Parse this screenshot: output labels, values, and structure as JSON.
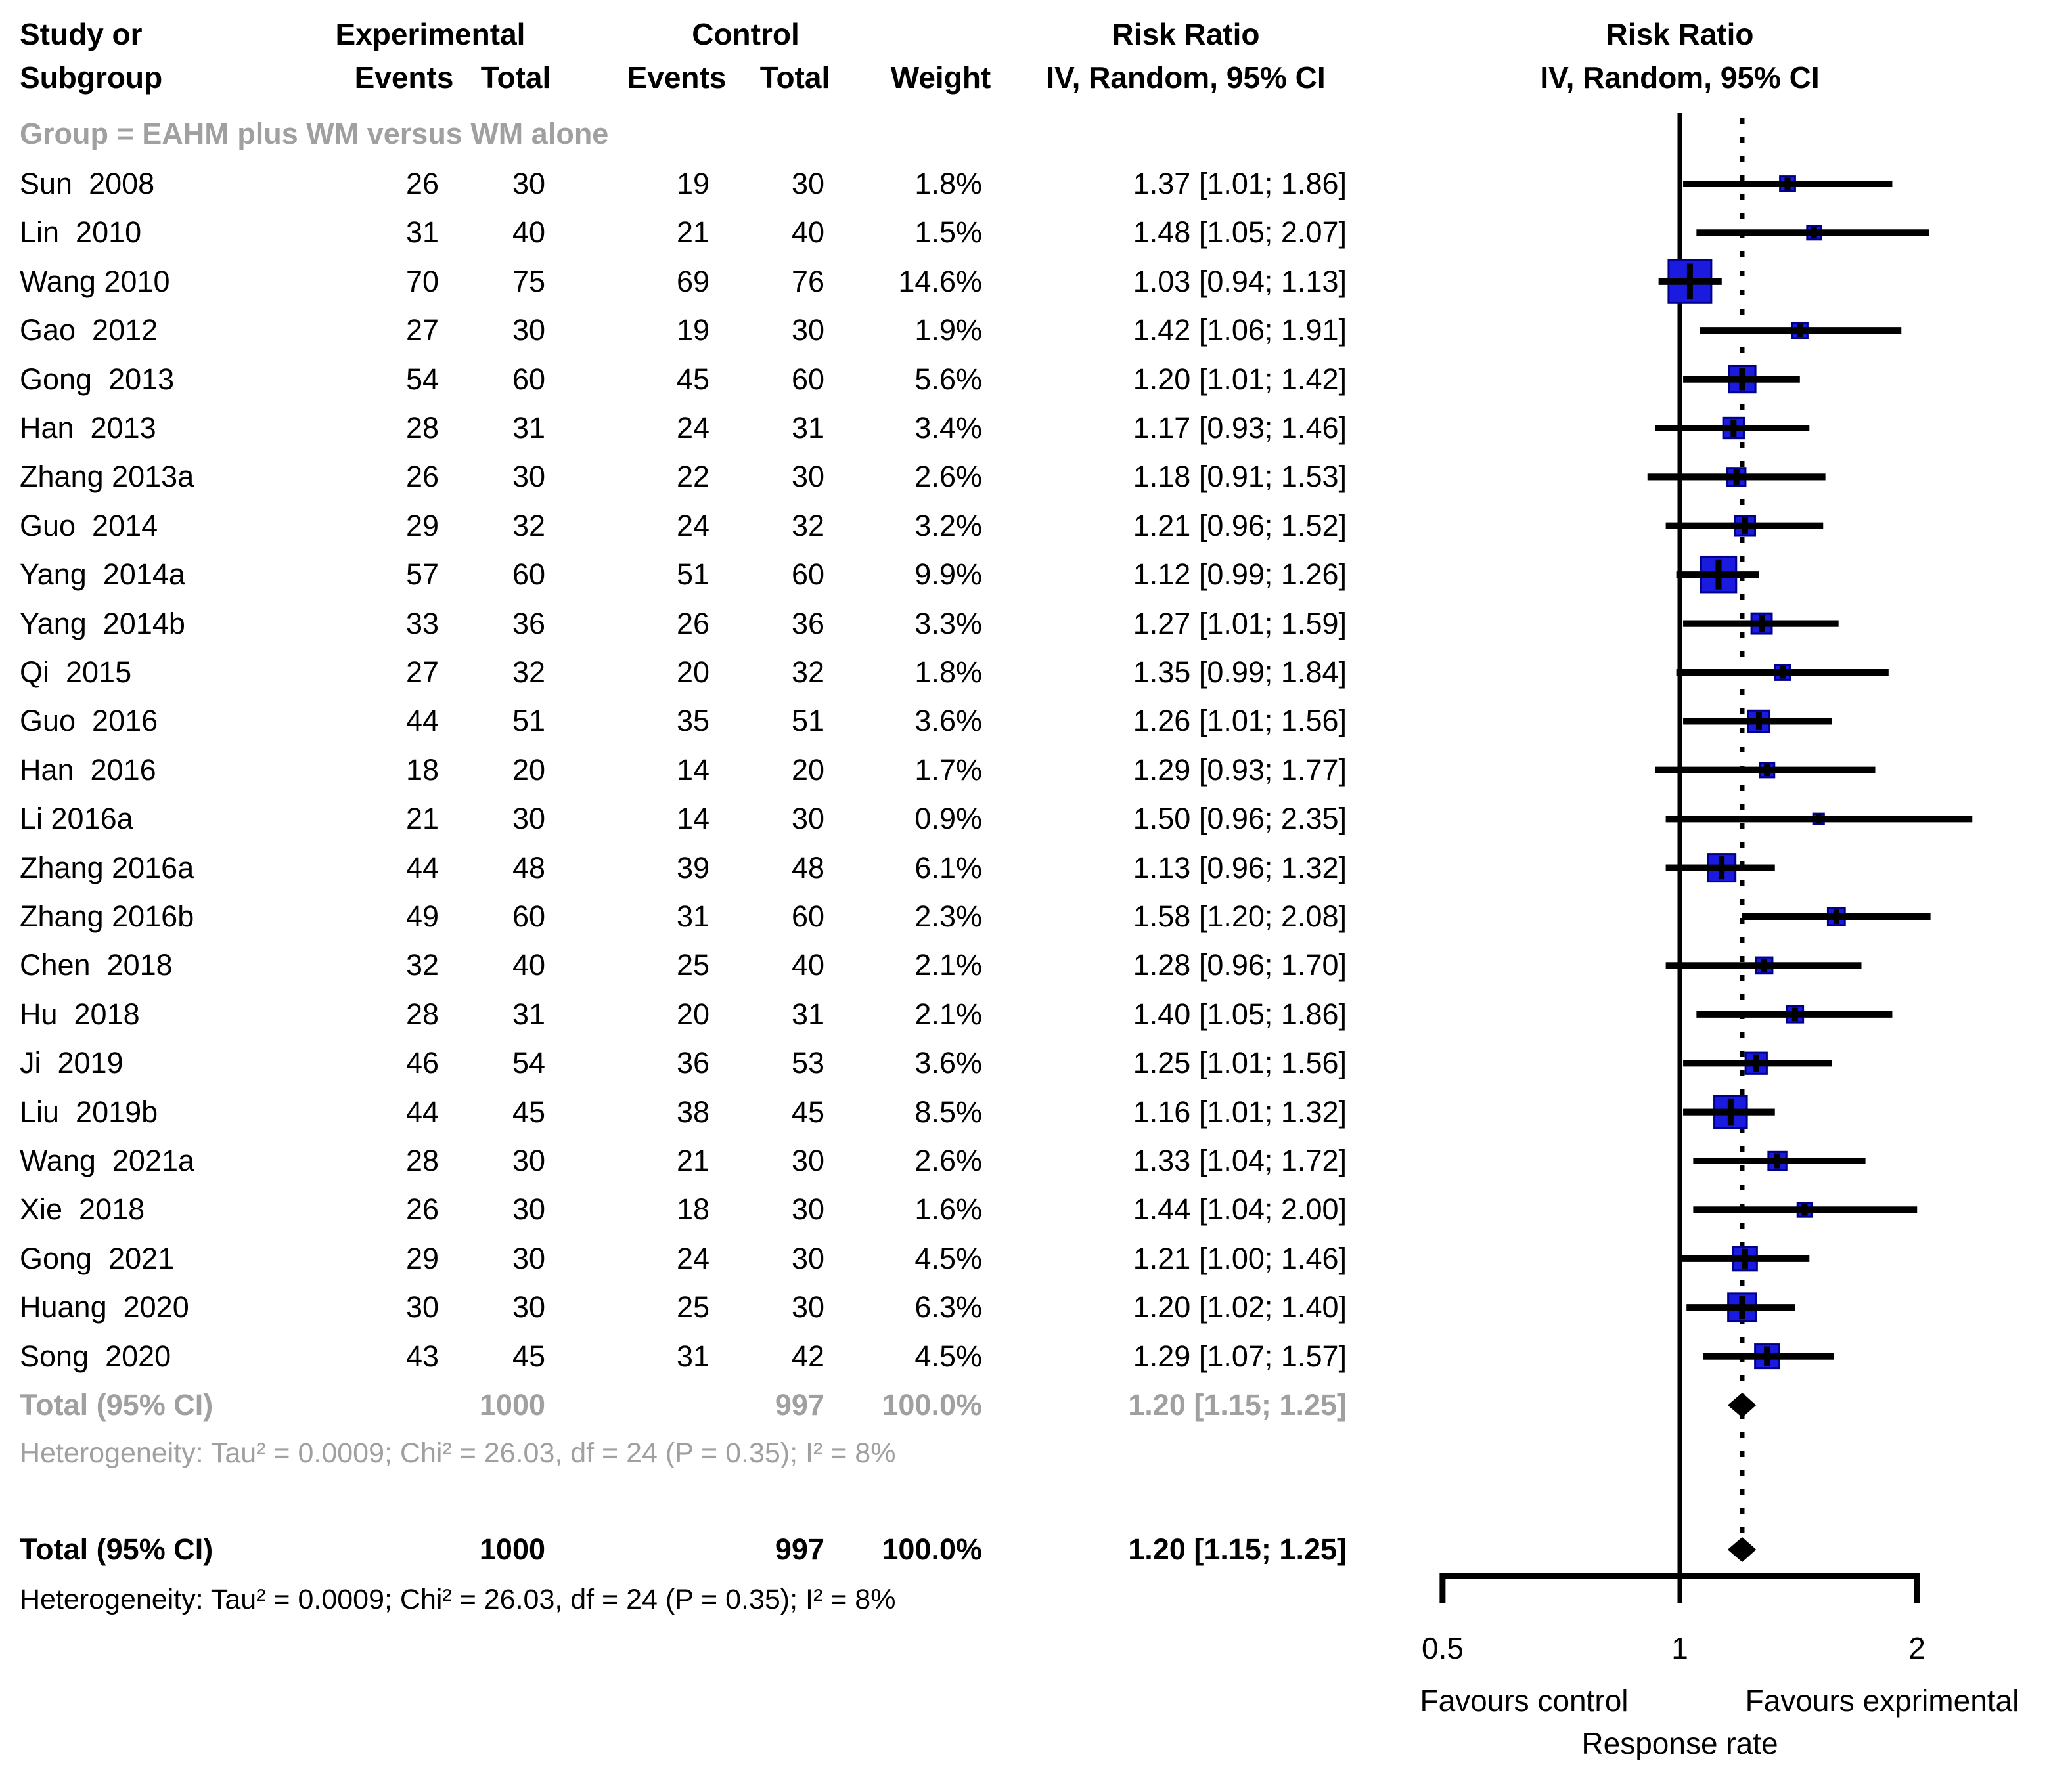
{
  "header": {
    "study_line1": "Study or",
    "study_line2": "Subgroup",
    "experimental": "Experimental",
    "control": "Control",
    "events": "Events",
    "total": "Total",
    "weight": "Weight",
    "risk_ratio": "Risk Ratio",
    "method_ci": "IV, Random, 95% CI"
  },
  "subgroup_label": "Group = EAHM plus WM versus WM alone",
  "labels": {
    "total_label": "Total (95% CI)"
  },
  "axis": {
    "ticks": [
      "0.5",
      "1",
      "2"
    ],
    "favours_left": "Favours control",
    "favours_right": "Favours exprimental",
    "xlabel": "Response rate"
  },
  "colors": {
    "square": "#1b1be0",
    "square_border": "#00008b",
    "ci_line": "#000000",
    "gray_text": "#a0a0a0",
    "diamond": "#000000"
  },
  "chart_data": {
    "type": "forest",
    "effect_measure": "Risk Ratio",
    "model": "IV, Random, 95% CI",
    "x_scale": "log",
    "x_ticks": [
      0.5,
      1,
      2
    ],
    "null_line": 1,
    "pooled_dotted_line": 1.2,
    "studies": [
      {
        "name": "Sun  2008",
        "exp_events": 26,
        "exp_total": 30,
        "ctrl_events": 19,
        "ctrl_total": 30,
        "weight": 1.8,
        "est": 1.37,
        "lo": 1.01,
        "hi": 1.86
      },
      {
        "name": "Lin  2010",
        "exp_events": 31,
        "exp_total": 40,
        "ctrl_events": 21,
        "ctrl_total": 40,
        "weight": 1.5,
        "est": 1.48,
        "lo": 1.05,
        "hi": 2.07
      },
      {
        "name": "Wang 2010",
        "exp_events": 70,
        "exp_total": 75,
        "ctrl_events": 69,
        "ctrl_total": 76,
        "weight": 14.6,
        "est": 1.03,
        "lo": 0.94,
        "hi": 1.13
      },
      {
        "name": "Gao  2012",
        "exp_events": 27,
        "exp_total": 30,
        "ctrl_events": 19,
        "ctrl_total": 30,
        "weight": 1.9,
        "est": 1.42,
        "lo": 1.06,
        "hi": 1.91
      },
      {
        "name": "Gong  2013",
        "exp_events": 54,
        "exp_total": 60,
        "ctrl_events": 45,
        "ctrl_total": 60,
        "weight": 5.6,
        "est": 1.2,
        "lo": 1.01,
        "hi": 1.42
      },
      {
        "name": "Han  2013",
        "exp_events": 28,
        "exp_total": 31,
        "ctrl_events": 24,
        "ctrl_total": 31,
        "weight": 3.4,
        "est": 1.17,
        "lo": 0.93,
        "hi": 1.46
      },
      {
        "name": "Zhang 2013a",
        "exp_events": 26,
        "exp_total": 30,
        "ctrl_events": 22,
        "ctrl_total": 30,
        "weight": 2.6,
        "est": 1.18,
        "lo": 0.91,
        "hi": 1.53
      },
      {
        "name": "Guo  2014",
        "exp_events": 29,
        "exp_total": 32,
        "ctrl_events": 24,
        "ctrl_total": 32,
        "weight": 3.2,
        "est": 1.21,
        "lo": 0.96,
        "hi": 1.52
      },
      {
        "name": "Yang  2014a",
        "exp_events": 57,
        "exp_total": 60,
        "ctrl_events": 51,
        "ctrl_total": 60,
        "weight": 9.9,
        "est": 1.12,
        "lo": 0.99,
        "hi": 1.26
      },
      {
        "name": "Yang  2014b",
        "exp_events": 33,
        "exp_total": 36,
        "ctrl_events": 26,
        "ctrl_total": 36,
        "weight": 3.3,
        "est": 1.27,
        "lo": 1.01,
        "hi": 1.59
      },
      {
        "name": "Qi  2015",
        "exp_events": 27,
        "exp_total": 32,
        "ctrl_events": 20,
        "ctrl_total": 32,
        "weight": 1.8,
        "est": 1.35,
        "lo": 0.99,
        "hi": 1.84
      },
      {
        "name": "Guo  2016",
        "exp_events": 44,
        "exp_total": 51,
        "ctrl_events": 35,
        "ctrl_total": 51,
        "weight": 3.6,
        "est": 1.26,
        "lo": 1.01,
        "hi": 1.56
      },
      {
        "name": "Han  2016",
        "exp_events": 18,
        "exp_total": 20,
        "ctrl_events": 14,
        "ctrl_total": 20,
        "weight": 1.7,
        "est": 1.29,
        "lo": 0.93,
        "hi": 1.77
      },
      {
        "name": "Li 2016a",
        "exp_events": 21,
        "exp_total": 30,
        "ctrl_events": 14,
        "ctrl_total": 30,
        "weight": 0.9,
        "est": 1.5,
        "lo": 0.96,
        "hi": 2.35
      },
      {
        "name": "Zhang 2016a",
        "exp_events": 44,
        "exp_total": 48,
        "ctrl_events": 39,
        "ctrl_total": 48,
        "weight": 6.1,
        "est": 1.13,
        "lo": 0.96,
        "hi": 1.32
      },
      {
        "name": "Zhang 2016b",
        "exp_events": 49,
        "exp_total": 60,
        "ctrl_events": 31,
        "ctrl_total": 60,
        "weight": 2.3,
        "est": 1.58,
        "lo": 1.2,
        "hi": 2.08
      },
      {
        "name": "Chen  2018",
        "exp_events": 32,
        "exp_total": 40,
        "ctrl_events": 25,
        "ctrl_total": 40,
        "weight": 2.1,
        "est": 1.28,
        "lo": 0.96,
        "hi": 1.7
      },
      {
        "name": "Hu  2018",
        "exp_events": 28,
        "exp_total": 31,
        "ctrl_events": 20,
        "ctrl_total": 31,
        "weight": 2.1,
        "est": 1.4,
        "lo": 1.05,
        "hi": 1.86
      },
      {
        "name": "Ji  2019",
        "exp_events": 46,
        "exp_total": 54,
        "ctrl_events": 36,
        "ctrl_total": 53,
        "weight": 3.6,
        "est": 1.25,
        "lo": 1.01,
        "hi": 1.56
      },
      {
        "name": "Liu  2019b",
        "exp_events": 44,
        "exp_total": 45,
        "ctrl_events": 38,
        "ctrl_total": 45,
        "weight": 8.5,
        "est": 1.16,
        "lo": 1.01,
        "hi": 1.32
      },
      {
        "name": "Wang  2021a",
        "exp_events": 28,
        "exp_total": 30,
        "ctrl_events": 21,
        "ctrl_total": 30,
        "weight": 2.6,
        "est": 1.33,
        "lo": 1.04,
        "hi": 1.72
      },
      {
        "name": "Xie  2018",
        "exp_events": 26,
        "exp_total": 30,
        "ctrl_events": 18,
        "ctrl_total": 30,
        "weight": 1.6,
        "est": 1.44,
        "lo": 1.04,
        "hi": 2.0
      },
      {
        "name": "Gong  2021",
        "exp_events": 29,
        "exp_total": 30,
        "ctrl_events": 24,
        "ctrl_total": 30,
        "weight": 4.5,
        "est": 1.21,
        "lo": 1.0,
        "hi": 1.46
      },
      {
        "name": "Huang  2020",
        "exp_events": 30,
        "exp_total": 30,
        "ctrl_events": 25,
        "ctrl_total": 30,
        "weight": 6.3,
        "est": 1.2,
        "lo": 1.02,
        "hi": 1.4
      },
      {
        "name": "Song  2020",
        "exp_events": 43,
        "exp_total": 45,
        "ctrl_events": 31,
        "ctrl_total": 42,
        "weight": 4.5,
        "est": 1.29,
        "lo": 1.07,
        "hi": 1.57
      }
    ],
    "subtotal": {
      "label": "Total (95% CI)",
      "exp_total": 1000,
      "ctrl_total": 997,
      "weight": 100.0,
      "est": 1.2,
      "lo": 1.15,
      "hi": 1.25
    },
    "subtotal_heterogeneity": "Heterogeneity: Tau² = 0.0009; Chi² = 26.03, df = 24 (P = 0.35); I² = 8%",
    "total": {
      "label": "Total (95% CI)",
      "exp_total": 1000,
      "ctrl_total": 997,
      "weight": 100.0,
      "est": 1.2,
      "lo": 1.15,
      "hi": 1.25
    },
    "total_heterogeneity": "Heterogeneity: Tau² = 0.0009; Chi² = 26.03, df = 24 (P = 0.35); I² = 8%"
  }
}
